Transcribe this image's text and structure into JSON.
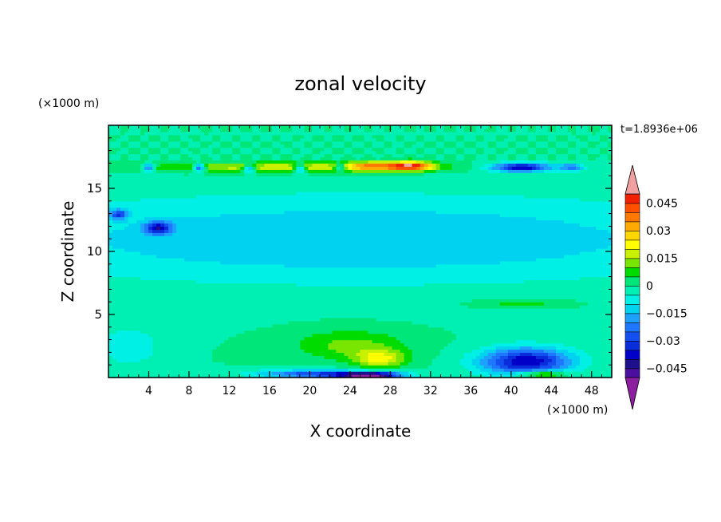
{
  "chart_data": {
    "type": "heatmap",
    "title": "zonal velocity",
    "xlabel": "X coordinate",
    "ylabel": "Z coordinate",
    "x_unit": "(×1000 m)",
    "y_unit": "(×1000 m)",
    "time_label": "t=1.8936e+06",
    "xlim": [
      0,
      50
    ],
    "ylim": [
      0,
      20
    ],
    "x_ticks": [
      4,
      8,
      12,
      16,
      20,
      24,
      28,
      32,
      36,
      40,
      44,
      48
    ],
    "x_tick_labels": [
      "4",
      "8",
      "12",
      "16",
      "20",
      "24",
      "28",
      "32",
      "36",
      "40",
      "44",
      "48"
    ],
    "y_ticks": [
      5,
      10,
      15
    ],
    "y_tick_labels": [
      "5",
      "10",
      "15"
    ],
    "grid": false,
    "colorbar": {
      "levels": [
        -0.05,
        -0.045,
        -0.04,
        -0.035,
        -0.03,
        -0.025,
        -0.02,
        -0.015,
        -0.01,
        -0.005,
        0,
        0.005,
        0.01,
        0.015,
        0.02,
        0.025,
        0.03,
        0.035,
        0.04,
        0.045,
        0.05
      ],
      "colors": [
        "#4b0fa0",
        "#1e0f8c",
        "#0000c8",
        "#0a2ddc",
        "#1450f0",
        "#1e78ff",
        "#1ea0ff",
        "#00d2f0",
        "#00f0e6",
        "#00f0b4",
        "#00e678",
        "#00dc00",
        "#78e600",
        "#c8f000",
        "#ffff00",
        "#ffd700",
        "#ffaa00",
        "#ff7800",
        "#ff5000",
        "#f02000"
      ],
      "under_color": "#8c1ea0",
      "over_color": "#f0a0a0",
      "tick_values": [
        0.045,
        0.03,
        0.015,
        0,
        -0.015,
        -0.03,
        -0.045
      ],
      "tick_labels": [
        "0.045",
        "0.03",
        "0.015",
        "0",
        "−0.015",
        "−0.03",
        "−0.045"
      ]
    },
    "field": {
      "background": 0.0,
      "features": [
        {
          "x": 18,
          "z": 16.7,
          "sx": 14,
          "sz": 0.4,
          "v": 0.02
        },
        {
          "x": 30,
          "z": 16.8,
          "sx": 2.2,
          "sz": 0.35,
          "v": 0.045
        },
        {
          "x": 26,
          "z": 16.8,
          "sx": 2.5,
          "sz": 0.35,
          "v": 0.025
        },
        {
          "x": 41,
          "z": 16.7,
          "sx": 3,
          "sz": 0.35,
          "v": -0.04
        },
        {
          "x": 9,
          "z": 16.7,
          "sx": 0.6,
          "sz": 0.3,
          "v": -0.035
        },
        {
          "x": 4,
          "z": 16.7,
          "sx": 0.6,
          "sz": 0.3,
          "v": -0.03
        },
        {
          "x": 14,
          "z": 16.6,
          "sx": 0.6,
          "sz": 0.3,
          "v": -0.03
        },
        {
          "x": 19,
          "z": 16.6,
          "sx": 0.6,
          "sz": 0.3,
          "v": -0.03
        },
        {
          "x": 23,
          "z": 16.7,
          "sx": 0.6,
          "sz": 0.3,
          "v": -0.025
        },
        {
          "x": 46,
          "z": 16.7,
          "sx": 1.2,
          "sz": 0.3,
          "v": -0.02
        },
        {
          "x": 25,
          "z": 11,
          "sx": 40,
          "sz": 3.5,
          "v": -0.015
        },
        {
          "x": 5,
          "z": 11.9,
          "sx": 1.3,
          "sz": 0.5,
          "v": -0.03
        },
        {
          "x": 1,
          "z": 13,
          "sx": 0.8,
          "sz": 0.4,
          "v": -0.025
        },
        {
          "x": 2,
          "z": 2.5,
          "sx": 3,
          "sz": 1.5,
          "v": -0.01
        },
        {
          "x": 24,
          "z": 2.6,
          "sx": 5.5,
          "sz": 1.2,
          "v": 0.012
        },
        {
          "x": 27,
          "z": 1.5,
          "sx": 2.5,
          "sz": 0.7,
          "v": 0.02
        },
        {
          "x": 41.5,
          "z": 1.3,
          "sx": 4.5,
          "sz": 1.1,
          "v": -0.04
        },
        {
          "x": 41,
          "z": 5.9,
          "sx": 5,
          "sz": 0.35,
          "v": 0.008
        },
        {
          "x": 26,
          "z": 0.2,
          "sx": 3,
          "sz": 0.25,
          "v": -0.05
        },
        {
          "x": 21,
          "z": 0.3,
          "sx": 6,
          "sz": 0.35,
          "v": -0.03
        },
        {
          "x": 43,
          "z": 0.3,
          "sx": 2.5,
          "sz": 0.3,
          "v": 0.025
        }
      ]
    }
  }
}
